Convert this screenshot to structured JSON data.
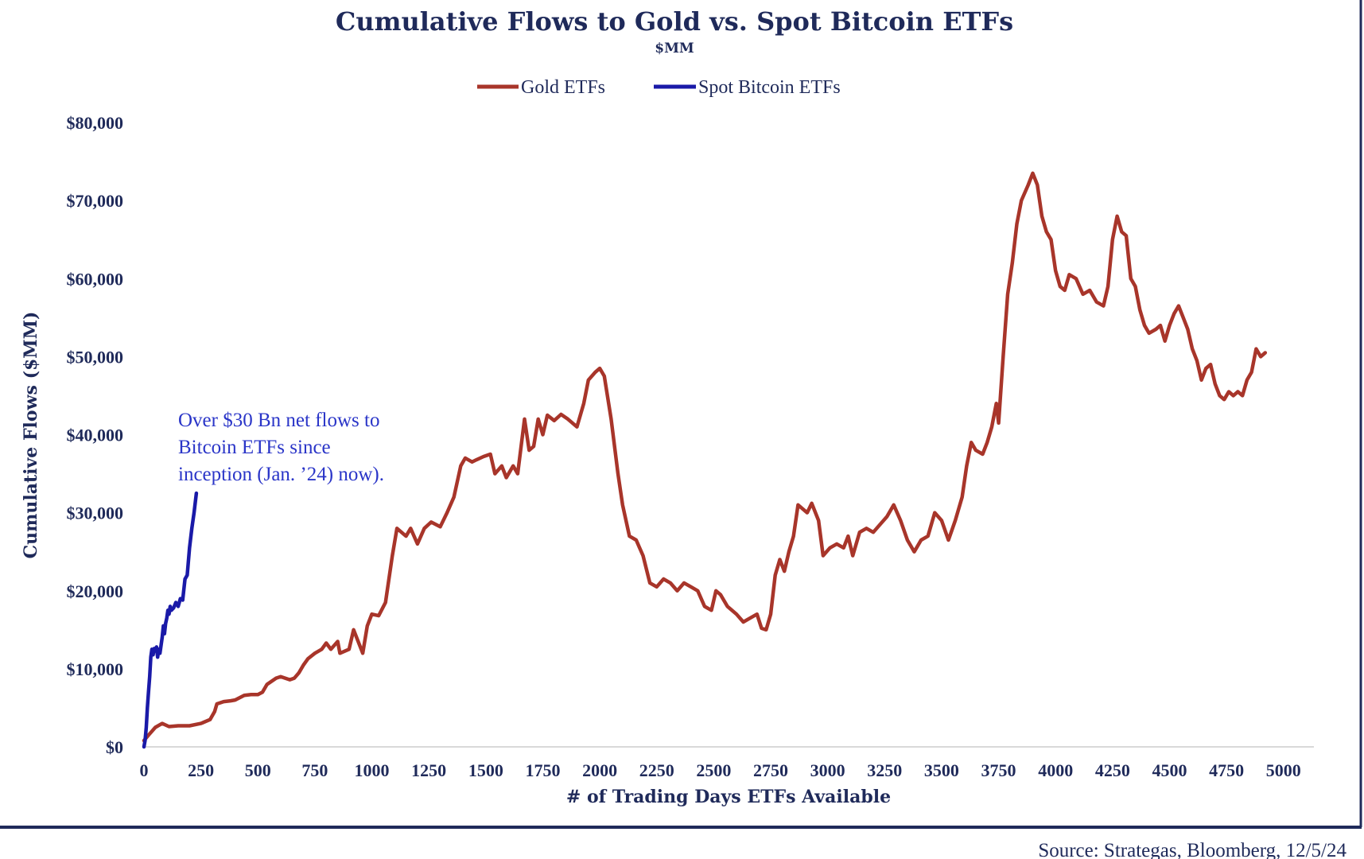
{
  "chart_data": {
    "type": "line",
    "title": "Cumulative Flows to Gold vs. Spot Bitcoin ETFs",
    "subtitle": "$MM",
    "xlabel": "# of Trading Days ETFs Available",
    "ylabel": "Cumulative Flows ($MM)",
    "xlim": [
      0,
      5130
    ],
    "ylim": [
      0,
      80000
    ],
    "x_ticks": [
      0,
      250,
      500,
      750,
      1000,
      1250,
      1500,
      1750,
      2000,
      2250,
      2500,
      2750,
      3000,
      3250,
      3500,
      3750,
      4000,
      4250,
      4500,
      4750,
      5000
    ],
    "x_tick_labels": [
      "0",
      "250",
      "500",
      "750",
      "1000",
      "1250",
      "1500",
      "1750",
      "2000",
      "2250",
      "2500",
      "2750",
      "3000",
      "3250",
      "3500",
      "3750",
      "4000",
      "4250",
      "4500",
      "4750",
      "5000"
    ],
    "y_ticks": [
      0,
      10000,
      20000,
      30000,
      40000,
      50000,
      60000,
      70000,
      80000
    ],
    "y_tick_labels": [
      "$0",
      "$10,000",
      "$20,000",
      "$30,000",
      "$40,000",
      "$50,000",
      "$60,000",
      "$70,000",
      "$80,000"
    ],
    "grid": false,
    "legend_position": "top-center",
    "series": [
      {
        "name": "Gold ETFs",
        "color": "#a8352a",
        "points": [
          [
            0,
            800
          ],
          [
            20,
            1500
          ],
          [
            50,
            2500
          ],
          [
            80,
            3000
          ],
          [
            110,
            2600
          ],
          [
            150,
            2700
          ],
          [
            200,
            2700
          ],
          [
            250,
            3000
          ],
          [
            290,
            3500
          ],
          [
            310,
            4500
          ],
          [
            320,
            5500
          ],
          [
            350,
            5800
          ],
          [
            380,
            5900
          ],
          [
            400,
            6000
          ],
          [
            440,
            6600
          ],
          [
            470,
            6700
          ],
          [
            500,
            6700
          ],
          [
            520,
            7000
          ],
          [
            540,
            8000
          ],
          [
            580,
            8800
          ],
          [
            600,
            9000
          ],
          [
            640,
            8600
          ],
          [
            660,
            8800
          ],
          [
            680,
            9500
          ],
          [
            700,
            10500
          ],
          [
            720,
            11300
          ],
          [
            750,
            12000
          ],
          [
            780,
            12500
          ],
          [
            800,
            13300
          ],
          [
            820,
            12500
          ],
          [
            850,
            13500
          ],
          [
            860,
            12000
          ],
          [
            900,
            12500
          ],
          [
            920,
            15000
          ],
          [
            960,
            12000
          ],
          [
            980,
            15500
          ],
          [
            1000,
            17000
          ],
          [
            1030,
            16800
          ],
          [
            1060,
            18500
          ],
          [
            1090,
            24500
          ],
          [
            1110,
            28000
          ],
          [
            1130,
            27500
          ],
          [
            1150,
            27000
          ],
          [
            1170,
            28000
          ],
          [
            1200,
            26000
          ],
          [
            1230,
            28000
          ],
          [
            1260,
            28800
          ],
          [
            1300,
            28200
          ],
          [
            1330,
            30000
          ],
          [
            1360,
            32000
          ],
          [
            1390,
            36000
          ],
          [
            1410,
            37000
          ],
          [
            1440,
            36500
          ],
          [
            1460,
            36800
          ],
          [
            1490,
            37200
          ],
          [
            1520,
            37500
          ],
          [
            1540,
            35000
          ],
          [
            1570,
            36000
          ],
          [
            1590,
            34500
          ],
          [
            1620,
            36000
          ],
          [
            1640,
            35000
          ],
          [
            1670,
            42000
          ],
          [
            1690,
            38000
          ],
          [
            1710,
            38500
          ],
          [
            1730,
            42000
          ],
          [
            1750,
            40000
          ],
          [
            1770,
            42500
          ],
          [
            1800,
            41800
          ],
          [
            1830,
            42600
          ],
          [
            1860,
            42000
          ],
          [
            1900,
            41000
          ],
          [
            1930,
            44000
          ],
          [
            1950,
            47000
          ],
          [
            1980,
            48000
          ],
          [
            2000,
            48500
          ],
          [
            2020,
            47500
          ],
          [
            2050,
            42000
          ],
          [
            2080,
            35000
          ],
          [
            2100,
            31000
          ],
          [
            2130,
            27000
          ],
          [
            2160,
            26500
          ],
          [
            2190,
            24500
          ],
          [
            2220,
            21000
          ],
          [
            2250,
            20500
          ],
          [
            2280,
            21500
          ],
          [
            2310,
            21000
          ],
          [
            2340,
            20000
          ],
          [
            2370,
            21000
          ],
          [
            2400,
            20500
          ],
          [
            2430,
            20000
          ],
          [
            2460,
            18000
          ],
          [
            2490,
            17500
          ],
          [
            2510,
            20000
          ],
          [
            2530,
            19500
          ],
          [
            2560,
            18000
          ],
          [
            2600,
            17000
          ],
          [
            2630,
            16000
          ],
          [
            2660,
            16500
          ],
          [
            2690,
            17000
          ],
          [
            2710,
            15200
          ],
          [
            2730,
            15000
          ],
          [
            2750,
            17000
          ],
          [
            2770,
            22000
          ],
          [
            2790,
            24000
          ],
          [
            2810,
            22500
          ],
          [
            2830,
            25000
          ],
          [
            2850,
            27000
          ],
          [
            2870,
            31000
          ],
          [
            2890,
            30500
          ],
          [
            2910,
            30000
          ],
          [
            2930,
            31200
          ],
          [
            2960,
            29000
          ],
          [
            2980,
            24500
          ],
          [
            3010,
            25500
          ],
          [
            3040,
            26000
          ],
          [
            3070,
            25500
          ],
          [
            3090,
            27000
          ],
          [
            3110,
            24500
          ],
          [
            3140,
            27500
          ],
          [
            3170,
            28000
          ],
          [
            3200,
            27500
          ],
          [
            3230,
            28500
          ],
          [
            3260,
            29500
          ],
          [
            3290,
            31000
          ],
          [
            3320,
            29000
          ],
          [
            3350,
            26500
          ],
          [
            3380,
            25000
          ],
          [
            3410,
            26500
          ],
          [
            3440,
            27000
          ],
          [
            3470,
            30000
          ],
          [
            3500,
            29000
          ],
          [
            3530,
            26500
          ],
          [
            3560,
            29000
          ],
          [
            3590,
            32000
          ],
          [
            3610,
            36000
          ],
          [
            3630,
            39000
          ],
          [
            3650,
            38000
          ],
          [
            3680,
            37500
          ],
          [
            3700,
            39000
          ],
          [
            3720,
            41000
          ],
          [
            3740,
            44000
          ],
          [
            3750,
            41500
          ],
          [
            3770,
            50000
          ],
          [
            3790,
            58000
          ],
          [
            3810,
            62000
          ],
          [
            3830,
            67000
          ],
          [
            3850,
            70000
          ],
          [
            3880,
            72000
          ],
          [
            3900,
            73500
          ],
          [
            3920,
            72000
          ],
          [
            3940,
            68000
          ],
          [
            3960,
            66000
          ],
          [
            3980,
            65000
          ],
          [
            4000,
            61000
          ],
          [
            4020,
            59000
          ],
          [
            4040,
            58500
          ],
          [
            4060,
            60500
          ],
          [
            4090,
            60000
          ],
          [
            4120,
            58000
          ],
          [
            4150,
            58500
          ],
          [
            4180,
            57000
          ],
          [
            4210,
            56500
          ],
          [
            4230,
            59000
          ],
          [
            4250,
            65000
          ],
          [
            4270,
            68000
          ],
          [
            4290,
            66000
          ],
          [
            4310,
            65500
          ],
          [
            4330,
            60000
          ],
          [
            4350,
            59000
          ],
          [
            4370,
            56000
          ],
          [
            4390,
            54000
          ],
          [
            4410,
            53000
          ],
          [
            4440,
            53500
          ],
          [
            4460,
            54000
          ],
          [
            4480,
            52000
          ],
          [
            4500,
            54000
          ],
          [
            4520,
            55500
          ],
          [
            4540,
            56500
          ],
          [
            4560,
            55000
          ],
          [
            4580,
            53500
          ],
          [
            4600,
            51000
          ],
          [
            4620,
            49500
          ],
          [
            4640,
            47000
          ],
          [
            4660,
            48500
          ],
          [
            4680,
            49000
          ],
          [
            4700,
            46500
          ],
          [
            4720,
            45000
          ],
          [
            4740,
            44500
          ],
          [
            4760,
            45500
          ],
          [
            4780,
            45000
          ],
          [
            4800,
            45500
          ],
          [
            4820,
            45000
          ],
          [
            4840,
            47000
          ],
          [
            4860,
            48000
          ],
          [
            4880,
            51000
          ],
          [
            4900,
            50000
          ],
          [
            4920,
            50500
          ]
        ]
      },
      {
        "name": "Spot Bitcoin ETFs",
        "color": "#1a1aa8",
        "points": [
          [
            0,
            0
          ],
          [
            5,
            800
          ],
          [
            10,
            2500
          ],
          [
            15,
            5000
          ],
          [
            20,
            7000
          ],
          [
            25,
            9000
          ],
          [
            30,
            11500
          ],
          [
            35,
            12500
          ],
          [
            40,
            11800
          ],
          [
            45,
            12600
          ],
          [
            50,
            12400
          ],
          [
            55,
            12800
          ],
          [
            60,
            11500
          ],
          [
            65,
            12500
          ],
          [
            70,
            12000
          ],
          [
            75,
            13000
          ],
          [
            80,
            14000
          ],
          [
            85,
            15500
          ],
          [
            90,
            14500
          ],
          [
            95,
            15800
          ],
          [
            100,
            16500
          ],
          [
            105,
            17500
          ],
          [
            110,
            17000
          ],
          [
            115,
            18000
          ],
          [
            120,
            17500
          ],
          [
            130,
            17800
          ],
          [
            140,
            18500
          ],
          [
            150,
            18000
          ],
          [
            160,
            19000
          ],
          [
            170,
            18800
          ],
          [
            180,
            21500
          ],
          [
            190,
            22000
          ],
          [
            200,
            25500
          ],
          [
            210,
            28000
          ],
          [
            220,
            30000
          ],
          [
            230,
            32500
          ]
        ]
      }
    ],
    "annotation": "Over $30 Bn net flows to Bitcoin ETFs since inception (Jan. ’24) now).",
    "annotation_lines": [
      "Over $30 Bn net flows to",
      "Bitcoin ETFs since",
      "inception (Jan. ’24) now)."
    ],
    "source": "Source: Strategas, Bloomberg, 12/5/24",
    "colors": {
      "frame": "#1f2a5a",
      "text": "#1f2a5a",
      "annotation": "#2a35c8"
    }
  }
}
